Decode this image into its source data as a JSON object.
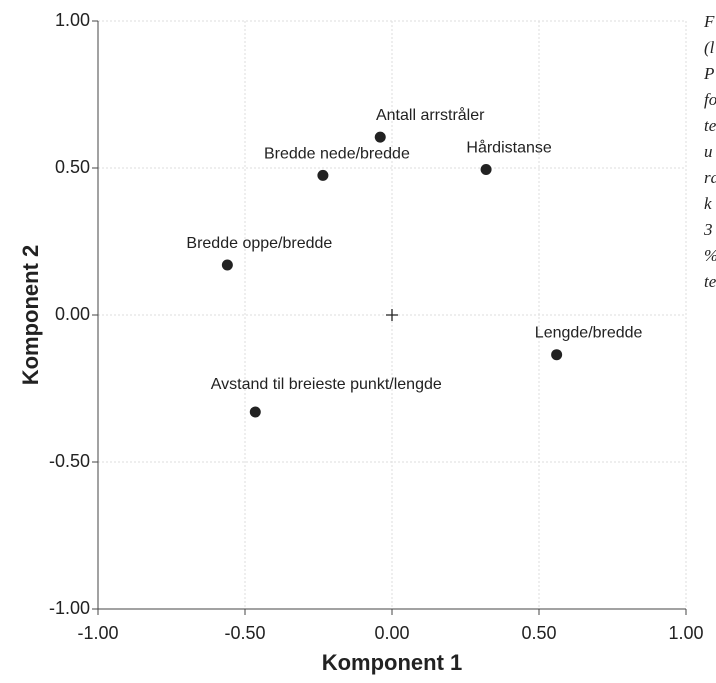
{
  "chart_data": {
    "type": "scatter",
    "x_label": "Komponent 1",
    "y_label": "Komponent 2",
    "xlim": [
      -1,
      1
    ],
    "ylim": [
      -1,
      1
    ],
    "xticks": [
      {
        "value": -1,
        "label": "-1.00"
      },
      {
        "value": -0.5,
        "label": "-0.50"
      },
      {
        "value": 0,
        "label": "0.00"
      },
      {
        "value": 0.5,
        "label": "0.50"
      },
      {
        "value": 1,
        "label": "1.00"
      }
    ],
    "yticks": [
      {
        "value": -1,
        "label": "-1.00"
      },
      {
        "value": -0.5,
        "label": "-0.50"
      },
      {
        "value": 0,
        "label": "0.00"
      },
      {
        "value": 0.5,
        "label": "0.50"
      },
      {
        "value": 1,
        "label": "1.00"
      }
    ],
    "grid": true,
    "color": "#222222",
    "labels": [
      "Antall arrstråler",
      "Bredde nede/bredde",
      "Hårdistanse",
      "Bredde oppe/bredde",
      "Lengde/bredde",
      "Avstand til breieste punkt/lengde"
    ],
    "x": [
      -0.04,
      -0.235,
      0.32,
      -0.56,
      0.56,
      -0.465
    ],
    "y": [
      0.605,
      0.475,
      0.495,
      0.17,
      -0.135,
      -0.33
    ]
  },
  "caption_fragments": [
    "F",
    "(l",
    "P",
    "fo",
    "te",
    "u",
    "ra",
    "k",
    "3",
    "%",
    "te"
  ]
}
